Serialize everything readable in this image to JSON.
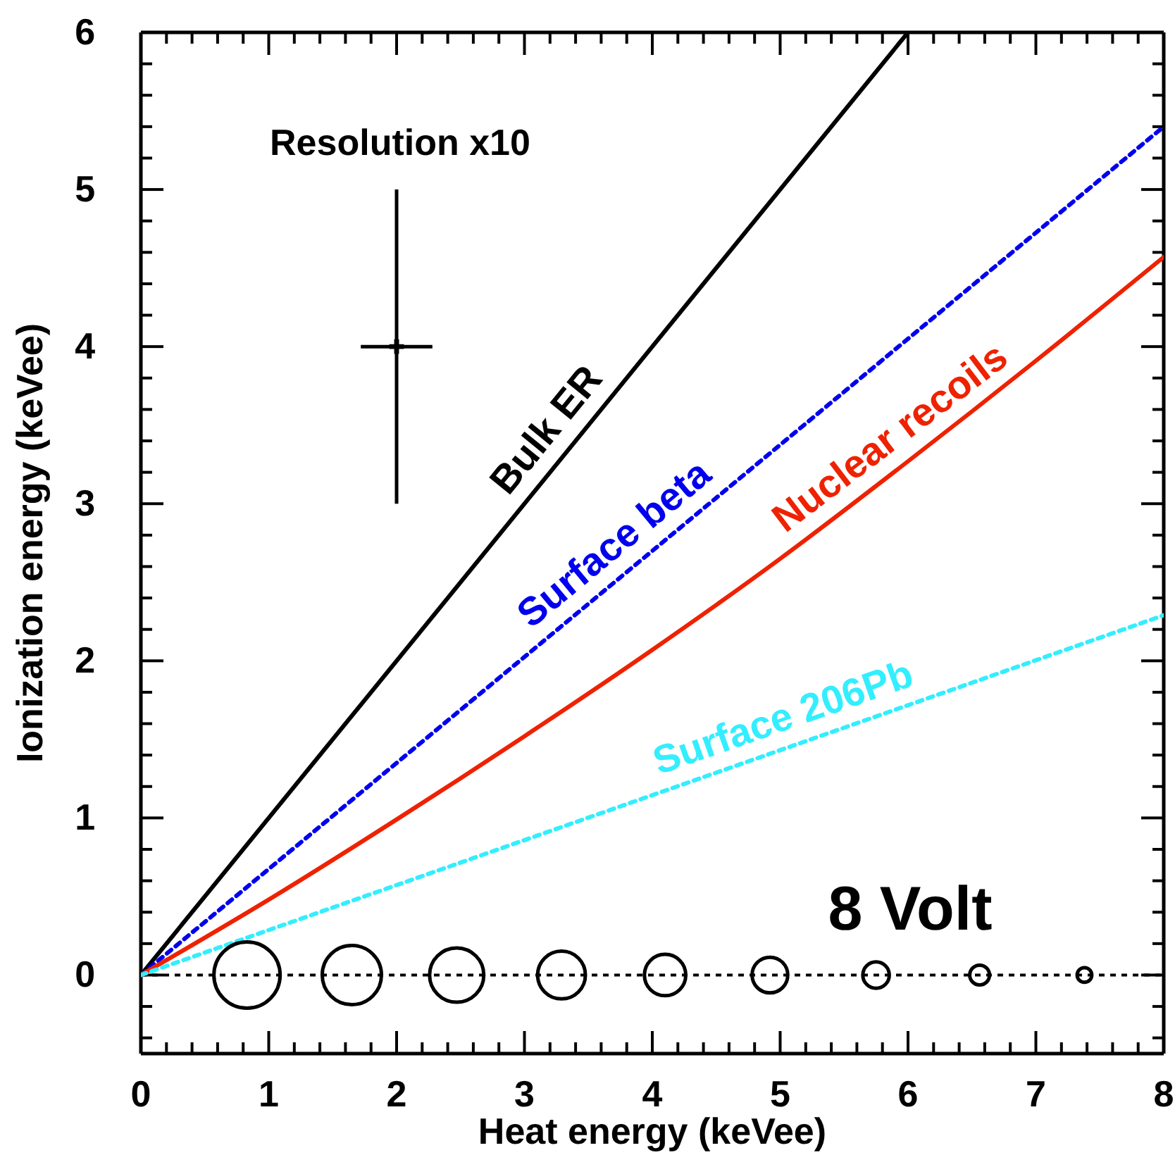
{
  "chart_data": {
    "type": "line",
    "xlabel": "Heat energy (keVee)",
    "ylabel": "Ionization energy (keVee)",
    "xlim": [
      0,
      8
    ],
    "ylim": [
      -0.5,
      6
    ],
    "xticks": [
      0,
      {
        "value": 0.2,
        "label": null
      },
      {
        "value": 0.4,
        "label": null
      },
      {
        "value": 0.6,
        "label": null
      },
      {
        "value": 0.8,
        "label": null
      },
      1,
      {
        "value": 1.2,
        "label": null
      },
      {
        "value": 1.4,
        "label": null
      },
      {
        "value": 1.6,
        "label": null
      },
      {
        "value": 1.8,
        "label": null
      },
      2,
      {
        "value": 2.2,
        "label": null
      },
      {
        "value": 2.4,
        "label": null
      },
      {
        "value": 2.6,
        "label": null
      },
      {
        "value": 2.8,
        "label": null
      },
      3,
      {
        "value": 3.2,
        "label": null
      },
      {
        "value": 3.4,
        "label": null
      },
      {
        "value": 3.6,
        "label": null
      },
      {
        "value": 3.8,
        "label": null
      },
      4,
      {
        "value": 4.2,
        "label": null
      },
      {
        "value": 4.4,
        "label": null
      },
      {
        "value": 4.6,
        "label": null
      },
      {
        "value": 4.8,
        "label": null
      },
      5,
      {
        "value": 5.2,
        "label": null
      },
      {
        "value": 5.4,
        "label": null
      },
      {
        "value": 5.6,
        "label": null
      },
      {
        "value": 5.8,
        "label": null
      },
      6,
      {
        "value": 6.2,
        "label": null
      },
      {
        "value": 6.4,
        "label": null
      },
      {
        "value": 6.6,
        "label": null
      },
      {
        "value": 6.8,
        "label": null
      },
      7,
      {
        "value": 7.2,
        "label": null
      },
      {
        "value": 7.4,
        "label": null
      },
      {
        "value": 7.6,
        "label": null
      },
      {
        "value": 7.8,
        "label": null
      },
      8
    ],
    "yticks": [
      {
        "value": -0.4,
        "label": null
      },
      {
        "value": -0.2,
        "label": null
      },
      0,
      {
        "value": 0.2,
        "label": null
      },
      {
        "value": 0.4,
        "label": null
      },
      {
        "value": 0.6,
        "label": null
      },
      {
        "value": 0.8,
        "label": null
      },
      1,
      {
        "value": 1.2,
        "label": null
      },
      {
        "value": 1.4,
        "label": null
      },
      {
        "value": 1.6,
        "label": null
      },
      {
        "value": 1.8,
        "label": null
      },
      2,
      {
        "value": 2.2,
        "label": null
      },
      {
        "value": 2.4,
        "label": null
      },
      {
        "value": 2.6,
        "label": null
      },
      {
        "value": 2.8,
        "label": null
      },
      3,
      {
        "value": 3.2,
        "label": null
      },
      {
        "value": 3.4,
        "label": null
      },
      {
        "value": 3.6,
        "label": null
      },
      {
        "value": 3.8,
        "label": null
      },
      4,
      {
        "value": 4.2,
        "label": null
      },
      {
        "value": 4.4,
        "label": null
      },
      {
        "value": 4.6,
        "label": null
      },
      {
        "value": 4.8,
        "label": null
      },
      5,
      {
        "value": 5.2,
        "label": null
      },
      {
        "value": 5.4,
        "label": null
      },
      {
        "value": 5.6,
        "label": null
      },
      {
        "value": 5.8,
        "label": null
      },
      6
    ],
    "grid": false,
    "series": [
      {
        "name": "Bulk ER",
        "color": "#000000",
        "line_style": "solid",
        "marker": "none",
        "x": [
          0,
          6
        ],
        "values": [
          0,
          6
        ]
      },
      {
        "name": "Surface beta",
        "color": "#0000ee",
        "line_style": "dotted",
        "marker": "none",
        "x": [
          0,
          8
        ],
        "values": [
          0,
          5.4
        ]
      },
      {
        "name": "Nuclear recoils",
        "color": "#ee2200",
        "line_style": "solid",
        "marker": "none",
        "x": [
          0,
          1,
          2,
          3,
          4,
          5,
          6,
          7,
          8
        ],
        "values": [
          0,
          0.48,
          0.99,
          1.52,
          2.07,
          2.65,
          3.27,
          3.91,
          4.57
        ]
      },
      {
        "name": "Surface 206Pb",
        "color": "#33eeff",
        "line_style": "dotted",
        "marker": "none",
        "x": [
          0,
          8
        ],
        "values": [
          0,
          2.29
        ]
      },
      {
        "type": "bubble",
        "color": "#000000",
        "x": [
          0.83,
          1.65,
          2.47,
          3.29,
          4.1,
          4.92,
          5.75,
          6.56,
          7.38
        ],
        "values": [
          0,
          0,
          0,
          0,
          0,
          0,
          0,
          0,
          0
        ],
        "sizes": [
          1,
          0.8,
          0.67,
          0.52,
          0.39,
          0.29,
          0.16,
          0.089,
          0.049
        ]
      },
      {
        "type": "scatter",
        "color": "#000000",
        "marker": "cross",
        "x": [
          2
        ],
        "values": [
          4
        ],
        "errors": [
          1
        ],
        "xerrors": [
          0.28
        ]
      }
    ],
    "ref_lines": [
      {
        "axis": "y",
        "value": 0,
        "color": "#000000",
        "line_style": "dotted"
      }
    ],
    "annotations": [
      "Resolution x10",
      "8 Volt"
    ]
  }
}
